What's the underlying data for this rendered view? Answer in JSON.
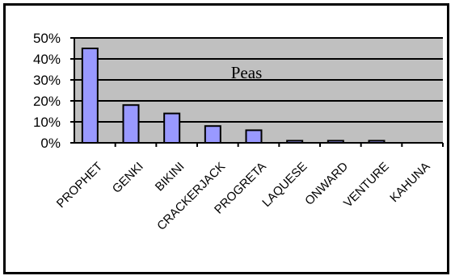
{
  "chart_data": {
    "type": "bar",
    "title": "Peas",
    "categories": [
      "PROPHET",
      "GENKI",
      "BIKINI",
      "CRACKERJACK",
      "PROGRETA",
      "LAQUESE",
      "ONWARD",
      "VENTURE",
      "KAHUNA"
    ],
    "values": [
      45,
      18,
      14,
      8,
      6,
      1,
      1,
      1,
      0
    ],
    "ylim": [
      0,
      50
    ],
    "yticks": [
      "0%",
      "10%",
      "20%",
      "30%",
      "40%",
      "50%"
    ],
    "grid": true,
    "colors": {
      "plot_bg": "#c0c0c0",
      "bar": "#9999ff",
      "bar_border": "#000000"
    }
  }
}
